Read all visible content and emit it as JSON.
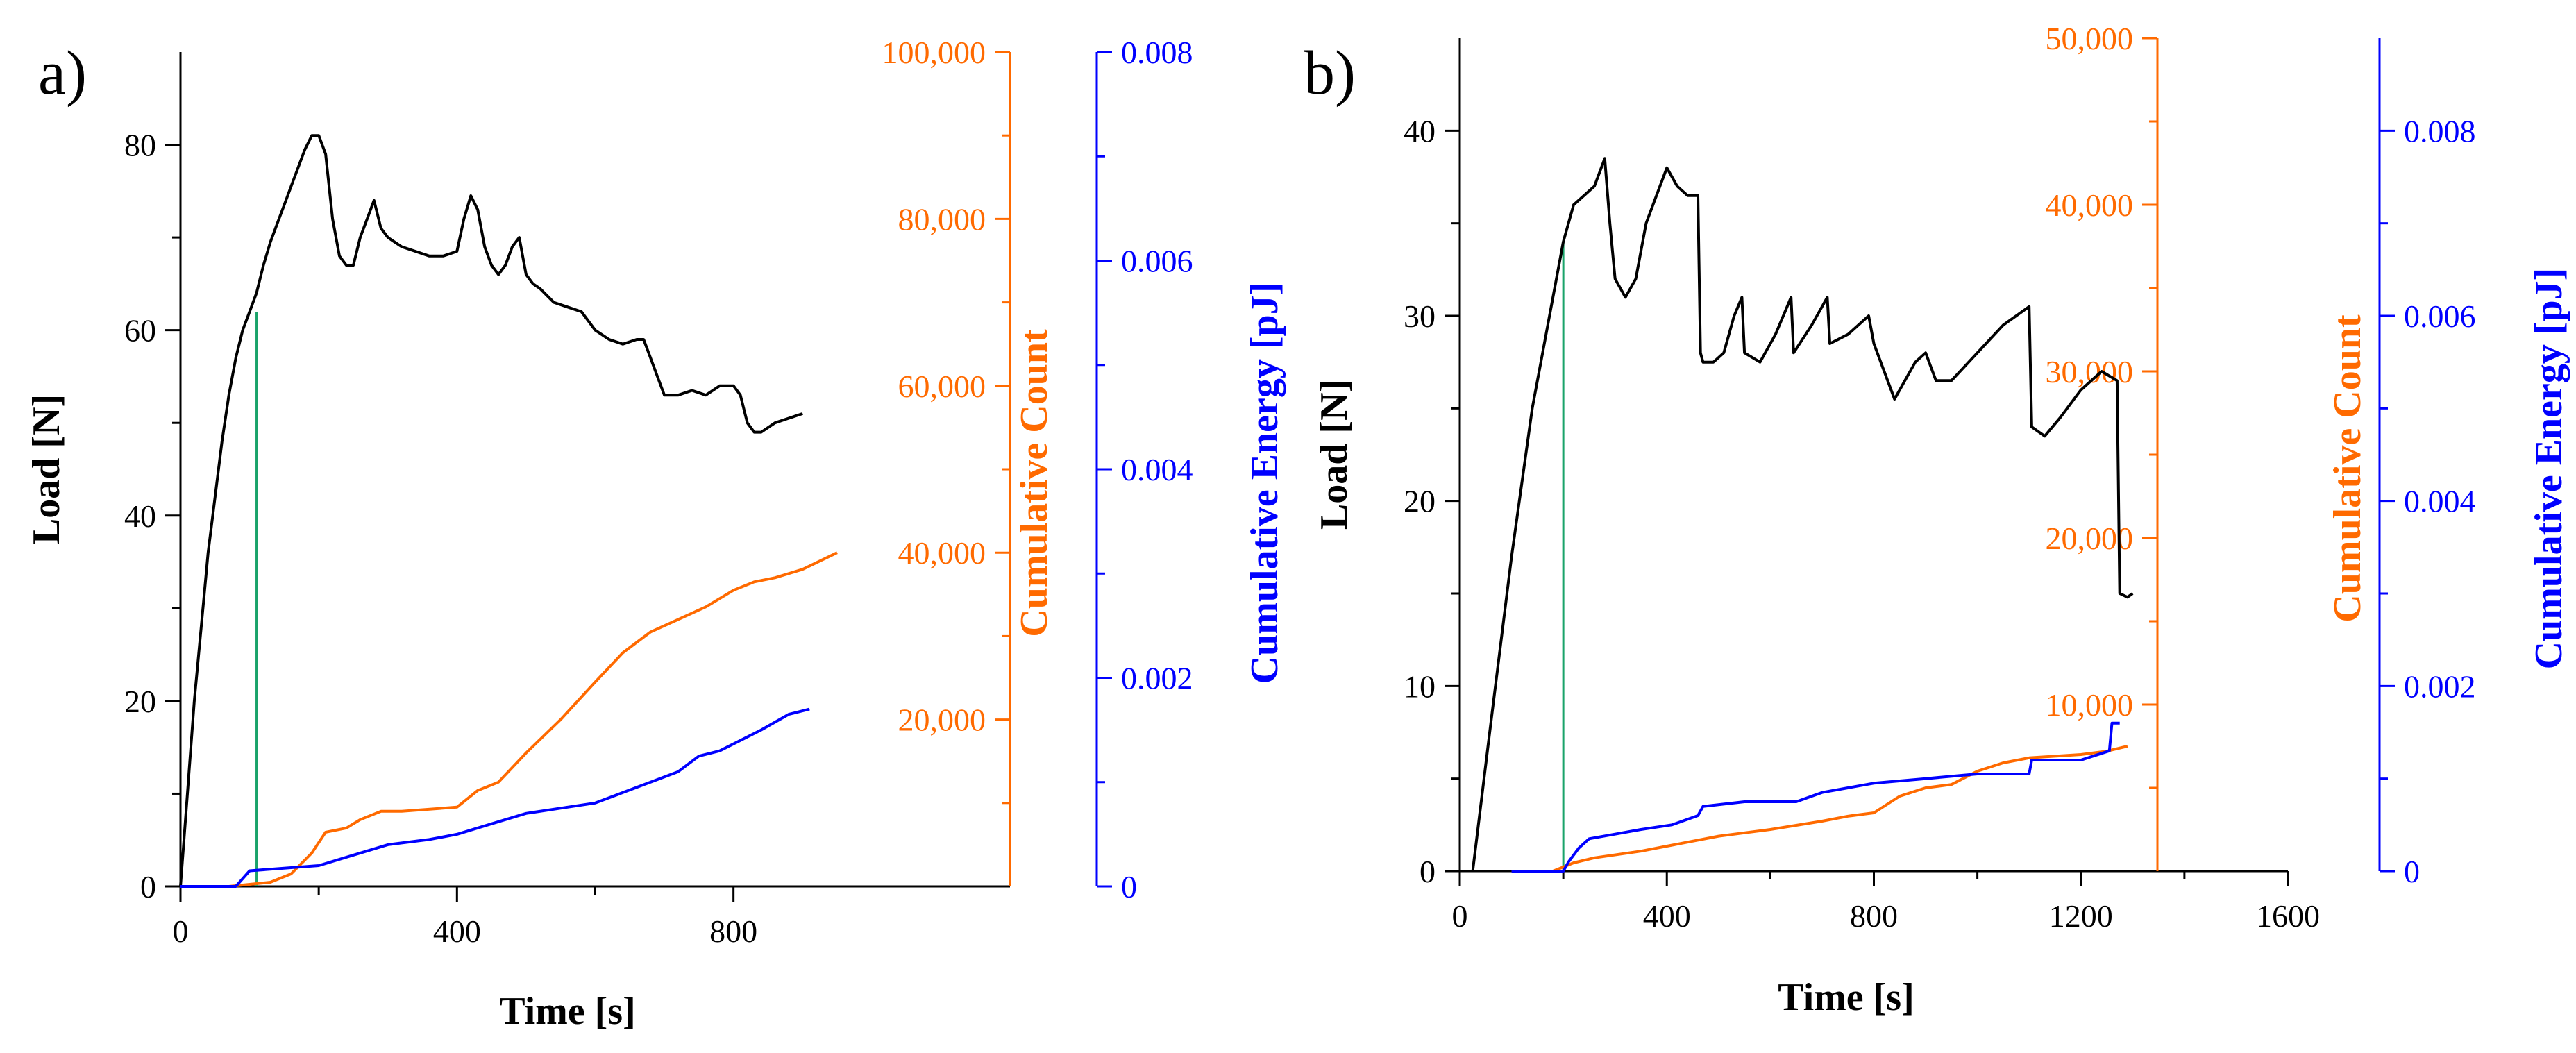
{
  "chart_data": [
    {
      "type": "line",
      "panel_label": "a)",
      "xlabel": "Time [s]",
      "ylabel": "Load [N]",
      "y2label": "Cumulative Count",
      "y3label": "Cumulative Energy [pJ]",
      "xlim": [
        0,
        1200
      ],
      "ylim": [
        0,
        90
      ],
      "y2lim": [
        0,
        100000
      ],
      "y3lim": [
        0,
        0.008
      ],
      "x_ticks": [
        0,
        400,
        800
      ],
      "x_tick_labels": [
        "0",
        "400",
        "800"
      ],
      "y_ticks": [
        0,
        20,
        40,
        60,
        80
      ],
      "y_tick_labels": [
        "0",
        "20",
        "40",
        "60",
        "80"
      ],
      "y2_ticks": [
        20000,
        40000,
        60000,
        80000,
        100000
      ],
      "y2_tick_labels": [
        "20,000",
        "40,000",
        "60,000",
        "80,000",
        "100,000"
      ],
      "y3_ticks": [
        0,
        0.002,
        0.004,
        0.006,
        0.008
      ],
      "y3_tick_labels": [
        "0",
        "0.002",
        "0.004",
        "0.006",
        "0.008"
      ],
      "colors": {
        "load": "#000000",
        "count": "#ff6a00",
        "energy": "#0000ff",
        "marker": "#1aa36a"
      },
      "marker_x": 110,
      "marker_load": 62,
      "series": [
        {
          "name": "Load",
          "axis": "y",
          "x": [
            0,
            10,
            20,
            30,
            40,
            50,
            60,
            70,
            80,
            90,
            100,
            110,
            120,
            130,
            140,
            150,
            160,
            170,
            180,
            190,
            200,
            210,
            220,
            230,
            240,
            250,
            260,
            270,
            280,
            290,
            300,
            310,
            320,
            340,
            360,
            380,
            400,
            410,
            420,
            430,
            440,
            450,
            460,
            470,
            480,
            490,
            500,
            510,
            520,
            540,
            560,
            580,
            600,
            620,
            640,
            660,
            670,
            680,
            690,
            700,
            720,
            740,
            760,
            780,
            800,
            810,
            820,
            830,
            840,
            850,
            860,
            880,
            900
          ],
          "values": [
            0,
            10,
            20,
            28,
            36,
            42,
            48,
            53,
            57,
            60,
            62,
            64,
            67,
            69.5,
            71.5,
            73.5,
            75.5,
            77.5,
            79.5,
            81,
            81,
            79,
            72,
            68,
            67,
            67,
            70,
            72,
            74,
            71,
            70,
            69.5,
            69,
            68.5,
            68,
            68,
            68.5,
            72,
            74.5,
            73,
            69,
            67,
            66,
            67,
            69,
            70,
            66,
            65,
            64.5,
            63,
            62.5,
            62,
            60,
            59,
            58.5,
            59,
            59,
            57,
            55,
            53,
            53,
            53.5,
            53,
            54,
            54,
            53,
            50,
            49,
            49,
            49.5,
            50,
            50.5,
            51
          ]
        },
        {
          "name": "Cumulative Count",
          "axis": "y2",
          "x": [
            0,
            70,
            130,
            160,
            190,
            210,
            240,
            260,
            290,
            320,
            400,
            430,
            460,
            500,
            550,
            600,
            640,
            680,
            720,
            760,
            800,
            830,
            860,
            900,
            950
          ],
          "values": [
            0,
            0,
            500,
            1500,
            4000,
            6500,
            7000,
            8000,
            9000,
            9000,
            9500,
            11500,
            12500,
            16000,
            20000,
            24500,
            28000,
            30500,
            32000,
            33500,
            35500,
            36500,
            37000,
            38000,
            40000
          ]
        },
        {
          "name": "Cumulative Energy",
          "axis": "y3",
          "x": [
            0,
            80,
            100,
            200,
            250,
            300,
            360,
            400,
            450,
            500,
            550,
            600,
            640,
            680,
            720,
            750,
            780,
            810,
            840,
            880,
            910
          ],
          "values": [
            0,
            0,
            0.00015,
            0.0002,
            0.0003,
            0.0004,
            0.00045,
            0.0005,
            0.0006,
            0.0007,
            0.00075,
            0.0008,
            0.0009,
            0.001,
            0.0011,
            0.00125,
            0.0013,
            0.0014,
            0.0015,
            0.00165,
            0.0017
          ]
        }
      ]
    },
    {
      "type": "line",
      "panel_label": "b)",
      "xlabel": "Time [s]",
      "ylabel": "Load [N]",
      "y2label": "Cumulative Count",
      "y3label": "Cumulative Energy [pJ]",
      "xlim": [
        0,
        1600
      ],
      "ylim": [
        0,
        45
      ],
      "y2lim": [
        0,
        50000
      ],
      "y3lim": [
        0,
        0.009
      ],
      "x_ticks": [
        0,
        400,
        800,
        1200,
        1600
      ],
      "x_tick_labels": [
        "0",
        "400",
        "800",
        "1200",
        "1600"
      ],
      "y_ticks": [
        0,
        10,
        20,
        30,
        40
      ],
      "y_tick_labels": [
        "0",
        "10",
        "20",
        "30",
        "40"
      ],
      "y2_ticks": [
        10000,
        20000,
        30000,
        40000,
        50000
      ],
      "y2_tick_labels": [
        "10,000",
        "20,000",
        "30,000",
        "40,000",
        "50,000"
      ],
      "y3_ticks": [
        0,
        0.002,
        0.004,
        0.006,
        0.008
      ],
      "y3_tick_labels": [
        "0",
        "0.002",
        "0.004",
        "0.006",
        "0.008"
      ],
      "colors": {
        "load": "#000000",
        "count": "#ff6a00",
        "energy": "#0000ff",
        "marker": "#1aa36a"
      },
      "marker_x": 200,
      "marker_load": 34,
      "series": [
        {
          "name": "Load",
          "axis": "y",
          "x": [
            25,
            60,
            100,
            140,
            180,
            200,
            220,
            240,
            260,
            280,
            290,
            300,
            320,
            340,
            360,
            380,
            400,
            420,
            440,
            460,
            465,
            470,
            490,
            510,
            530,
            545,
            550,
            580,
            610,
            640,
            645,
            680,
            710,
            715,
            750,
            790,
            800,
            840,
            860,
            880,
            900,
            920,
            950,
            1000,
            1050,
            1100,
            1105,
            1130,
            1160,
            1200,
            1240,
            1270,
            1275,
            1290,
            1300
          ],
          "values": [
            0,
            8,
            17,
            25,
            31,
            34,
            36,
            36.5,
            37,
            38.5,
            35,
            32,
            31,
            32,
            35,
            36.5,
            38,
            37,
            36.5,
            36.5,
            28,
            27.5,
            27.5,
            28,
            30,
            31,
            28,
            27.5,
            29,
            31,
            28,
            29.5,
            31,
            28.5,
            29,
            30,
            28.5,
            25.5,
            26.5,
            27.5,
            28,
            26.5,
            26.5,
            28,
            29.5,
            30.5,
            24,
            23.5,
            24.5,
            26,
            27,
            26.5,
            15,
            14.8,
            15
          ]
        },
        {
          "name": "Cumulative Count",
          "axis": "y2",
          "x": [
            100,
            180,
            220,
            260,
            350,
            400,
            450,
            500,
            550,
            600,
            700,
            750,
            800,
            850,
            900,
            950,
            1000,
            1050,
            1100,
            1200,
            1250,
            1290
          ],
          "values": [
            0,
            0,
            500,
            800,
            1200,
            1500,
            1800,
            2100,
            2300,
            2500,
            3000,
            3300,
            3500,
            4500,
            5000,
            5200,
            6000,
            6500,
            6800,
            7000,
            7200,
            7500
          ]
        },
        {
          "name": "Cumulative Energy",
          "axis": "y3",
          "x": [
            100,
            200,
            210,
            230,
            250,
            300,
            350,
            410,
            460,
            470,
            550,
            650,
            700,
            750,
            800,
            900,
            1000,
            1100,
            1105,
            1200,
            1255,
            1260,
            1275
          ],
          "values": [
            0,
            0,
            0.0001,
            0.00025,
            0.00035,
            0.0004,
            0.00045,
            0.0005,
            0.0006,
            0.0007,
            0.00075,
            0.00075,
            0.00085,
            0.0009,
            0.00095,
            0.001,
            0.00105,
            0.00105,
            0.0012,
            0.0012,
            0.0013,
            0.0016,
            0.0016
          ]
        }
      ]
    }
  ]
}
